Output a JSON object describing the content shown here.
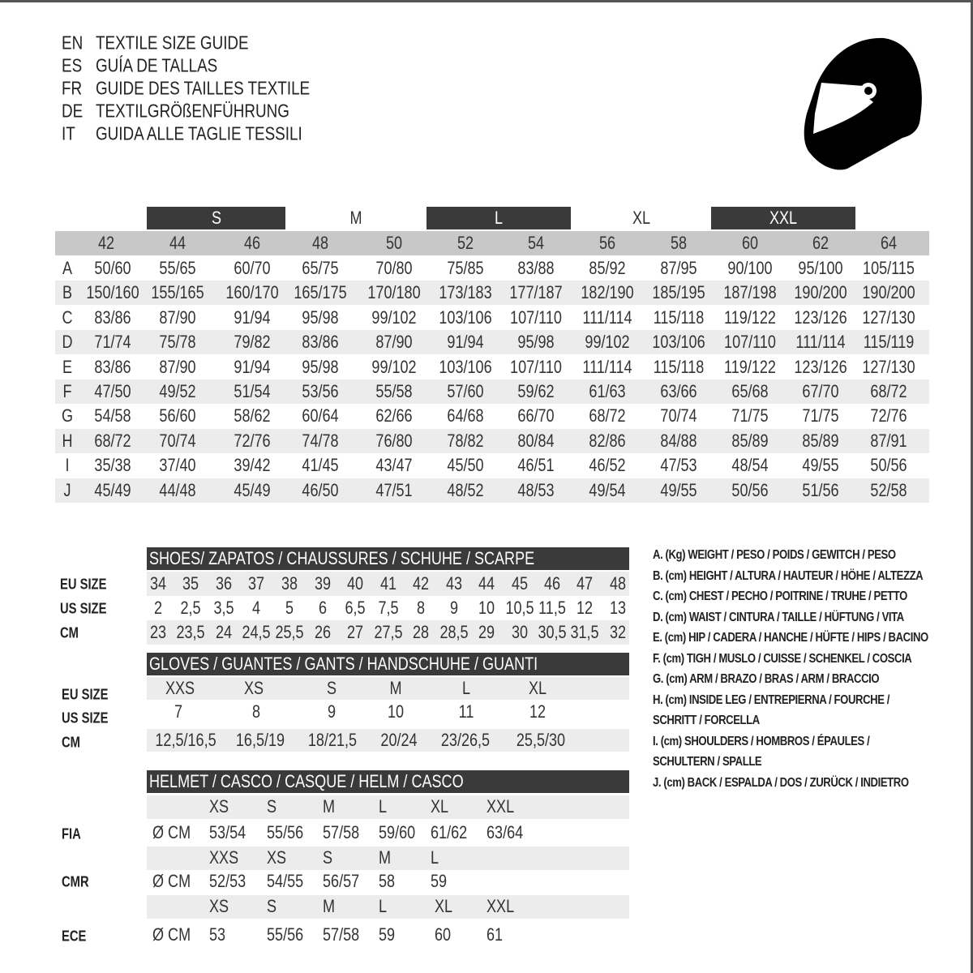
{
  "titles": [
    {
      "code": "EN",
      "text": "TEXTILE SIZE GUIDE"
    },
    {
      "code": "ES",
      "text": "GUÍA DE TALLAS"
    },
    {
      "code": "FR",
      "text": "GUIDE DES TAILLES TEXTILE"
    },
    {
      "code": "DE",
      "text": "TEXTILGRÖßENFÜHRUNG"
    },
    {
      "code": "IT",
      "text": "GUIDA ALLE TAGLIE TESSILI"
    }
  ],
  "icon": "helmet-icon",
  "colors": {
    "dark_band": "#3a3a3a",
    "header_gray": "#c8c8c8",
    "stripe": "#ececec"
  },
  "textile": {
    "size_groups": [
      {
        "label": "S",
        "dark": true
      },
      {
        "label": "M",
        "dark": false
      },
      {
        "label": "L",
        "dark": true
      },
      {
        "label": "XL",
        "dark": false
      },
      {
        "label": "XXL",
        "dark": true
      }
    ],
    "columns": [
      "42",
      "44",
      "46",
      "48",
      "50",
      "52",
      "54",
      "56",
      "58",
      "60",
      "62",
      "64"
    ],
    "rows": [
      {
        "key": "A",
        "values": [
          "50/60",
          "55/65",
          "60/70",
          "65/75",
          "70/80",
          "75/85",
          "83/88",
          "85/92",
          "87/95",
          "90/100",
          "95/100",
          "105/115"
        ]
      },
      {
        "key": "B",
        "values": [
          "150/160",
          "155/165",
          "160/170",
          "165/175",
          "170/180",
          "173/183",
          "177/187",
          "182/190",
          "185/195",
          "187/198",
          "190/200",
          "190/200"
        ]
      },
      {
        "key": "C",
        "values": [
          "83/86",
          "87/90",
          "91/94",
          "95/98",
          "99/102",
          "103/106",
          "107/110",
          "111/114",
          "115/118",
          "119/122",
          "123/126",
          "127/130"
        ]
      },
      {
        "key": "D",
        "values": [
          "71/74",
          "75/78",
          "79/82",
          "83/86",
          "87/90",
          "91/94",
          "95/98",
          "99/102",
          "103/106",
          "107/110",
          "111/114",
          "115/119"
        ]
      },
      {
        "key": "E",
        "values": [
          "83/86",
          "87/90",
          "91/94",
          "95/98",
          "99/102",
          "103/106",
          "107/110",
          "111/114",
          "115/118",
          "119/122",
          "123/126",
          "127/130"
        ]
      },
      {
        "key": "F",
        "values": [
          "47/50",
          "49/52",
          "51/54",
          "53/56",
          "55/58",
          "57/60",
          "59/62",
          "61/63",
          "63/66",
          "65/68",
          "67/70",
          "68/72"
        ]
      },
      {
        "key": "G",
        "values": [
          "54/58",
          "56/60",
          "58/62",
          "60/64",
          "62/66",
          "64/68",
          "66/70",
          "68/72",
          "70/74",
          "71/75",
          "71/75",
          "72/76"
        ]
      },
      {
        "key": "H",
        "values": [
          "68/72",
          "70/74",
          "72/76",
          "74/78",
          "76/80",
          "78/82",
          "80/84",
          "82/86",
          "84/88",
          "85/89",
          "85/89",
          "87/91"
        ]
      },
      {
        "key": "I",
        "values": [
          "35/38",
          "37/40",
          "39/42",
          "41/45",
          "43/47",
          "45/50",
          "46/51",
          "46/52",
          "47/53",
          "48/54",
          "49/55",
          "50/56"
        ]
      },
      {
        "key": "J",
        "values": [
          "45/49",
          "44/48",
          "45/49",
          "46/50",
          "47/51",
          "48/52",
          "48/53",
          "49/54",
          "49/55",
          "50/56",
          "51/56",
          "52/58"
        ]
      }
    ]
  },
  "shoes": {
    "title": "SHOES/ ZAPATOS / CHAUSSURES / SCHUHE / SCARPE",
    "rows": [
      {
        "label": "EU SIZE",
        "values": [
          "34",
          "35",
          "36",
          "37",
          "38",
          "39",
          "40",
          "41",
          "42",
          "43",
          "44",
          "45",
          "46",
          "47",
          "48"
        ]
      },
      {
        "label": "US SIZE",
        "values": [
          "2",
          "2,5",
          "3,5",
          "4",
          "5",
          "6",
          "6,5",
          "7,5",
          "8",
          "9",
          "10",
          "10,5",
          "11,5",
          "12",
          "13"
        ]
      },
      {
        "label": "CM",
        "values": [
          "23",
          "23,5",
          "24",
          "24,5",
          "25,5",
          "26",
          "27",
          "27,5",
          "28",
          "28,5",
          "29",
          "30",
          "30,5",
          "31,5",
          "32"
        ]
      }
    ]
  },
  "gloves": {
    "title": "GLOVES / GUANTES / GANTS / HANDSCHUHE / GUANTI",
    "rows": [
      {
        "label": "EU SIZE",
        "values": [
          "XXS",
          "XS",
          "S",
          "M",
          "L",
          "XL"
        ]
      },
      {
        "label": "US SIZE",
        "values": [
          "7",
          "8",
          "9",
          "10",
          "11",
          "12"
        ]
      },
      {
        "label": "CM",
        "values": [
          "12,5/16,5",
          "16,5/19",
          "18/21,5",
          "20/24",
          "23/26,5",
          "25,5/30"
        ]
      }
    ]
  },
  "helmet": {
    "title": "HELMET / CASCO / CASQUE / HELM / CASCO",
    "unit": "Ø CM",
    "standards": [
      {
        "label": "FIA",
        "sizes": [
          "XS",
          "S",
          "M",
          "L",
          "XL",
          "XXL"
        ],
        "values": [
          "53/54",
          "55/56",
          "57/58",
          "59/60",
          "61/62",
          "63/64"
        ]
      },
      {
        "label": "CMR",
        "sizes": [
          "XXS",
          "XS",
          "S",
          "M",
          "L"
        ],
        "values": [
          "52/53",
          "54/55",
          "56/57",
          "58",
          "59"
        ]
      },
      {
        "label": "ECE",
        "sizes": [
          "XS",
          "S",
          "M",
          "L",
          "XL",
          "XXL"
        ],
        "values": [
          "53",
          "55/56",
          "57/58",
          "59",
          "60",
          "61"
        ]
      }
    ]
  },
  "legend": [
    "A. (Kg) WEIGHT / PESO / POIDS / GEWITCH / PESO",
    "B. (cm) HEIGHT / ALTURA / HAUTEUR / HÖHE / ALTEZZA",
    "C. (cm) CHEST / PECHO / POITRINE / TRUHE / PETTO",
    "D. (cm) WAIST / CINTURA / TAILLE / HÜFTUNG / VITA",
    "E. (cm) HIP / CADERA / HANCHE / HÜFTE / HIPS /  BACINO",
    "F.  (cm) TIGH / MUSLO / CUISSE / SCHENKEL / COSCIA",
    "G. (cm) ARM  / BRAZO / BRAS / ARM / BRACCIO",
    "H. (cm) INSIDE LEG / ENTREPIERNA / FOURCHE /",
    "SCHRITT / FORCELLA",
    "I.  (cm) SHOULDERS / HOMBROS / ÉPAULES /",
    "SCHULTERN / SPALLE",
    "J. (cm) BACK / ESPALDA / DOS / ZURÜCK / INDIETRO"
  ]
}
